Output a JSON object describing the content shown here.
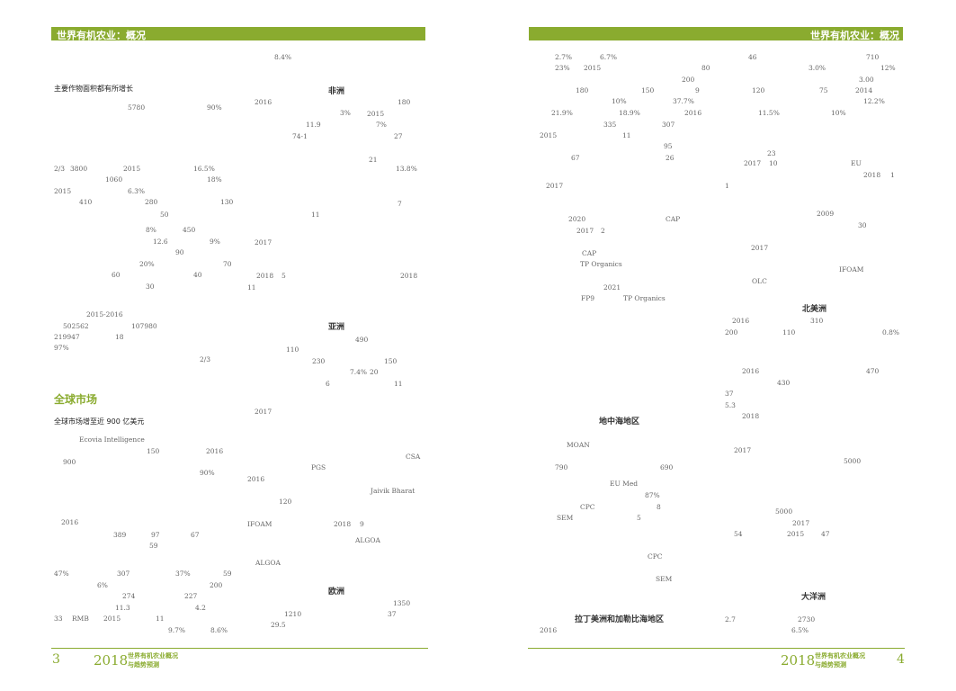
{
  "left": {
    "header": "世界有机农业：概况",
    "subheading_1": "主要作物面积都有所增长",
    "heading_africa": "非洲",
    "heading_asia": "亚洲",
    "section_title": "全球市场",
    "subheading_2": "全球市场增至近 900 亿美元",
    "heading_europe": "欧洲",
    "fragments": [
      "8.4%",
      "2016",
      "180",
      "5780",
      "90%",
      "3%",
      "2015",
      "11.9",
      "7%",
      "74-1",
      "27",
      "21",
      "2/3",
      "3800",
      "2015",
      "16.5%",
      "13.8%",
      "1060",
      "18%",
      "2015",
      "6.3%",
      "410",
      "280",
      "130",
      "7",
      "50",
      "11",
      "8%",
      "450",
      "12.6",
      "9%",
      "2017",
      "90",
      "20%",
      "70",
      "60",
      "40",
      "2018",
      "5",
      "2018",
      "30",
      "11",
      "2015-2016",
      "502562",
      "107980",
      "219947",
      "18",
      "490",
      "97%",
      "110",
      "2/3",
      "230",
      "150",
      "7.4%",
      "20",
      "6",
      "11",
      "2017",
      "Ecovia Intelligence",
      "150",
      "2016",
      "900",
      "CSA",
      "90%",
      "PGS",
      "2016",
      "Jaivik Bharat",
      "120",
      "2016",
      "IFOAM",
      "2018",
      "9",
      "389",
      "97",
      "67",
      "ALGOA",
      "59",
      "ALGOA",
      "47%",
      "307",
      "37%",
      "59",
      "6%",
      "200",
      "274",
      "227",
      "1350",
      "11.3",
      "4.2",
      "1210",
      "37",
      "33",
      "RMB",
      "2015",
      "11",
      "9.7%",
      "8.6%",
      "29.5"
    ],
    "footer": {
      "page": "3",
      "year": "2018",
      "title_1": "世界有机农业概况",
      "title_2": "与趋势预测"
    }
  },
  "right": {
    "header": "世界有机农业：概况",
    "heading_north_america": "北美洲",
    "heading_mediterranean": "地中海地区",
    "heading_oceania": "大洋洲",
    "heading_latin_america": "拉丁美洲和加勒比海地区",
    "fragments": [
      "2.7%",
      "6.7%",
      "46",
      "710",
      "23%",
      "2015",
      "80",
      "3.0%",
      "12%",
      "200",
      "3.00",
      "180",
      "150",
      "9",
      "120",
      "75",
      "2014",
      "10%",
      "37.7%",
      "12.2%",
      "21.9%",
      "18.9%",
      "2016",
      "11.5%",
      "10%",
      "335",
      "307",
      "2015",
      "11",
      "95",
      "23",
      "67",
      "26",
      "2017",
      "10",
      "EU",
      "2018",
      "1",
      "2017",
      "1",
      "2009",
      "2020",
      "CAP",
      "30",
      "2017",
      "2",
      "2017",
      "CAP",
      "TP Organics",
      "IFOAM",
      "OLC",
      "2021",
      "FP9",
      "TP Organics",
      "2016",
      "310",
      "200",
      "110",
      "0.8%",
      "2016",
      "470",
      "430",
      "37",
      "5.3",
      "2018",
      "MOAN",
      "2017",
      "5000",
      "790",
      "690",
      "EU Med",
      "87%",
      "CPC",
      "8",
      "5000",
      "SEM",
      "5",
      "2017",
      "54",
      "2015",
      "47",
      "CPC",
      "SEM",
      "2.7",
      "2730",
      "2016",
      "6.5%"
    ],
    "footer": {
      "page": "4",
      "year": "2018",
      "title_1": "世界有机农业概况",
      "title_2": "与趋势预测"
    }
  }
}
